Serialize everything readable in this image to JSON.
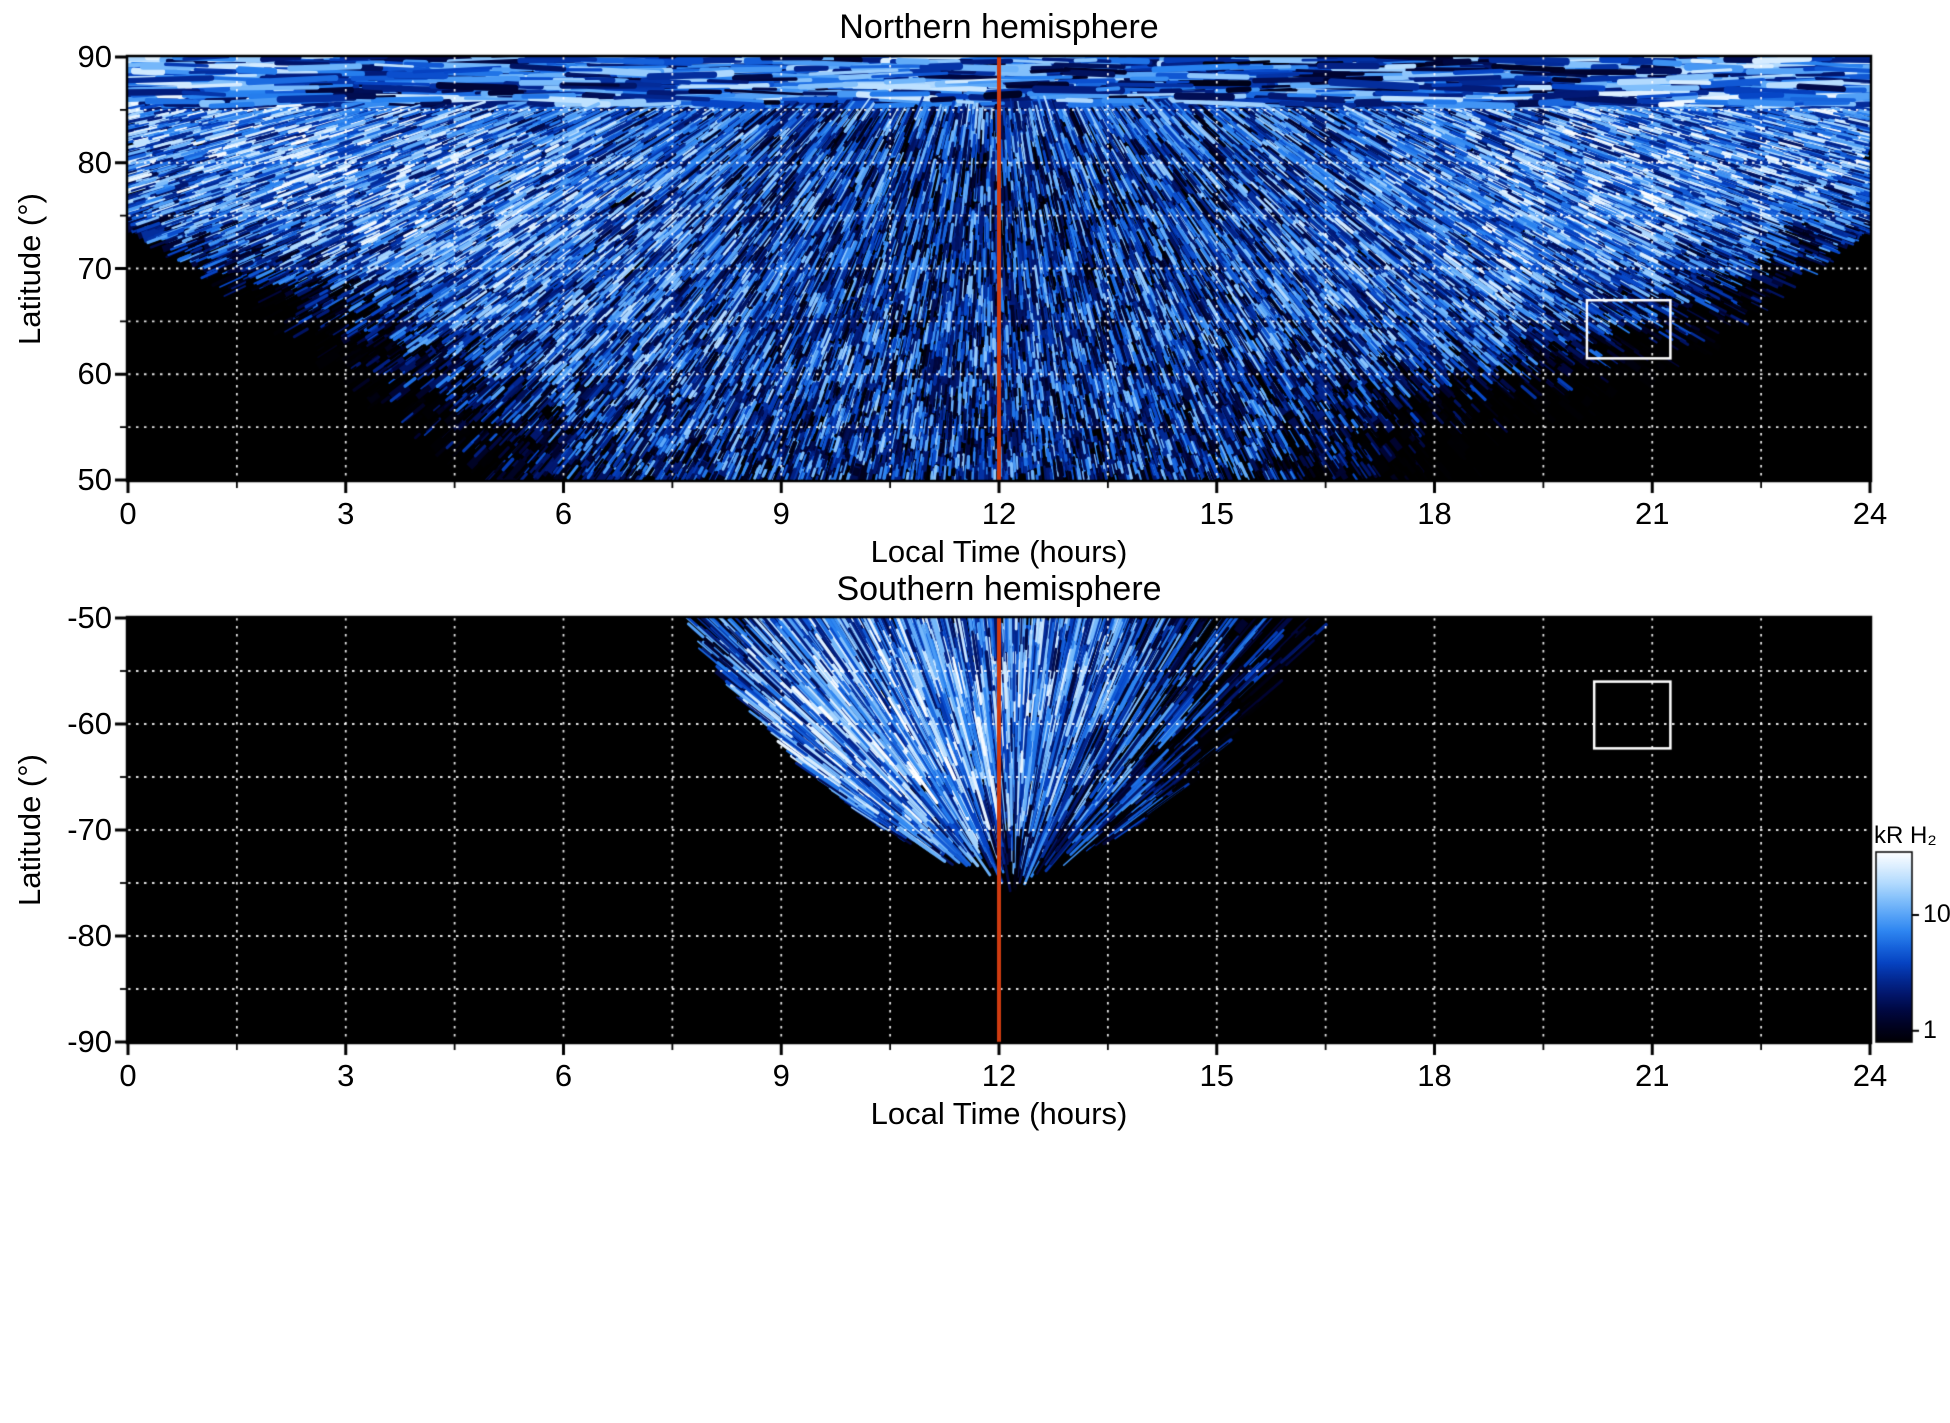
{
  "figure": {
    "background": "#ffffff"
  },
  "colorbar": {
    "label": "kR H₂",
    "scale": "log",
    "range": [
      0.8,
      35
    ],
    "ticks": [
      10,
      1
    ],
    "colors": [
      "#000004",
      "#000436",
      "#021c7c",
      "#0646c8",
      "#2882f0",
      "#6eb4fa",
      "#bee1ff",
      "#ffffff"
    ]
  },
  "chart_data": [
    {
      "type": "heatmap",
      "title": "Northern hemisphere",
      "xlabel": "Local Time (hours)",
      "ylabel": "Latitude (°)",
      "units": "kR",
      "xlim": [
        0,
        24
      ],
      "ylim": [
        50,
        90
      ],
      "xticks": [
        0,
        3,
        6,
        9,
        12,
        15,
        18,
        21,
        24
      ],
      "yticks": [
        90,
        80,
        70,
        60,
        50
      ],
      "grid": {
        "show": true,
        "style": "dotted",
        "color": "#ffffff",
        "x_step": 1.5,
        "y_step": 5
      },
      "lt_bin_centers": [
        1,
        3,
        5,
        7,
        9,
        11,
        13,
        15,
        17,
        19,
        21,
        23
      ],
      "lat_bin_centers": [
        87.5,
        82.5,
        77.5,
        72.5,
        67.5,
        62.5,
        57.5,
        52.5
      ],
      "values": [
        [
          7,
          5,
          5,
          4,
          5,
          6,
          5,
          4,
          4,
          5,
          6,
          7
        ],
        [
          8,
          9,
          7,
          5,
          4,
          3,
          4,
          4,
          5,
          7,
          9,
          8
        ],
        [
          7,
          9,
          8,
          6,
          4,
          3,
          3,
          4,
          6,
          8,
          9,
          7
        ],
        [
          3,
          7,
          8,
          6,
          4,
          3,
          3,
          4,
          6,
          8,
          7,
          3
        ],
        [
          0,
          2,
          6,
          5,
          4,
          3.5,
          3.5,
          4,
          5,
          6,
          3,
          0
        ],
        [
          0,
          0.5,
          4,
          5,
          4,
          3.5,
          3.5,
          4,
          4,
          3,
          0.5,
          0
        ],
        [
          0,
          0,
          2,
          4,
          4,
          3.5,
          3.5,
          3.5,
          2,
          0.5,
          0,
          0
        ],
        [
          0,
          0,
          0.8,
          3,
          3.5,
          3.5,
          3.5,
          3,
          1,
          0,
          0,
          0
        ]
      ],
      "emission_boundary_anchors": [
        [
          0,
          74
        ],
        [
          1,
          70
        ],
        [
          2,
          65
        ],
        [
          3,
          59
        ],
        [
          4,
          54
        ],
        [
          4.8,
          50
        ],
        [
          19,
          50
        ],
        [
          19.8,
          52
        ],
        [
          21,
          58
        ],
        [
          22,
          64
        ],
        [
          23,
          69
        ],
        [
          24,
          74
        ]
      ],
      "streak_convergence": [
        11.9,
        102
      ],
      "annotations": {
        "noon_line": {
          "x": 12,
          "color": "#cf3b10"
        },
        "highlight_box": {
          "lt": [
            20.1,
            21.25
          ],
          "lat": [
            61.5,
            67.0
          ],
          "color": "#ffffff"
        }
      }
    },
    {
      "type": "heatmap",
      "title": "Southern hemisphere",
      "xlabel": "Local Time (hours)",
      "ylabel": "Latitude (°)",
      "units": "kR",
      "xlim": [
        0,
        24
      ],
      "ylim": [
        -90,
        -50
      ],
      "xticks": [
        0,
        3,
        6,
        9,
        12,
        15,
        18,
        21,
        24
      ],
      "yticks": [
        -50,
        -60,
        -70,
        -80,
        -90
      ],
      "grid": {
        "show": true,
        "style": "dotted",
        "color": "#ffffff",
        "x_step": 1.5,
        "y_step": 5
      },
      "lt_bin_centers": [
        1,
        3,
        5,
        7,
        9,
        11,
        13,
        15,
        17,
        19,
        21,
        23
      ],
      "lat_bin_centers": [
        -52.5,
        -57.5,
        -62.5,
        -67.5,
        -72.5,
        -77.5,
        -82.5,
        -87.5
      ],
      "values": [
        [
          0,
          0,
          0,
          0.5,
          6,
          8,
          6,
          2,
          0,
          0,
          0,
          0
        ],
        [
          0,
          0,
          0,
          0.3,
          7,
          9,
          6,
          1.5,
          0,
          0,
          0,
          0
        ],
        [
          0,
          0,
          0,
          0,
          8,
          10,
          5,
          0.8,
          0,
          0,
          0,
          0
        ],
        [
          0,
          0,
          0,
          0,
          5,
          9,
          4,
          0.2,
          0,
          0,
          0,
          0
        ],
        [
          0,
          0,
          0,
          0,
          0.5,
          4,
          2,
          0,
          0,
          0,
          0,
          0
        ],
        [
          0,
          0,
          0,
          0,
          0,
          0,
          0,
          0,
          0,
          0,
          0,
          0
        ],
        [
          0,
          0,
          0,
          0,
          0,
          0,
          0,
          0,
          0,
          0,
          0,
          0
        ],
        [
          0,
          0,
          0,
          0,
          0,
          0,
          0,
          0,
          0,
          0,
          0,
          0
        ]
      ],
      "fan": {
        "center_lt": 12.1,
        "lat_min": -73.5,
        "halfwidth_anchors": [
          [
            -73.5,
            0
          ],
          [
            -72,
            1.0
          ],
          [
            -70,
            1.7
          ],
          [
            -65,
            2.6
          ],
          [
            -60,
            3.3
          ],
          [
            -55,
            3.9
          ],
          [
            -50,
            4.4
          ]
        ]
      },
      "streak_convergence": [
        12.2,
        -77.5
      ],
      "annotations": {
        "noon_line": {
          "x": 12,
          "color": "#cf3b10"
        },
        "highlight_box": {
          "lt": [
            20.2,
            21.25
          ],
          "lat": [
            -62.3,
            -56.0
          ],
          "color": "#ffffff"
        }
      }
    }
  ]
}
